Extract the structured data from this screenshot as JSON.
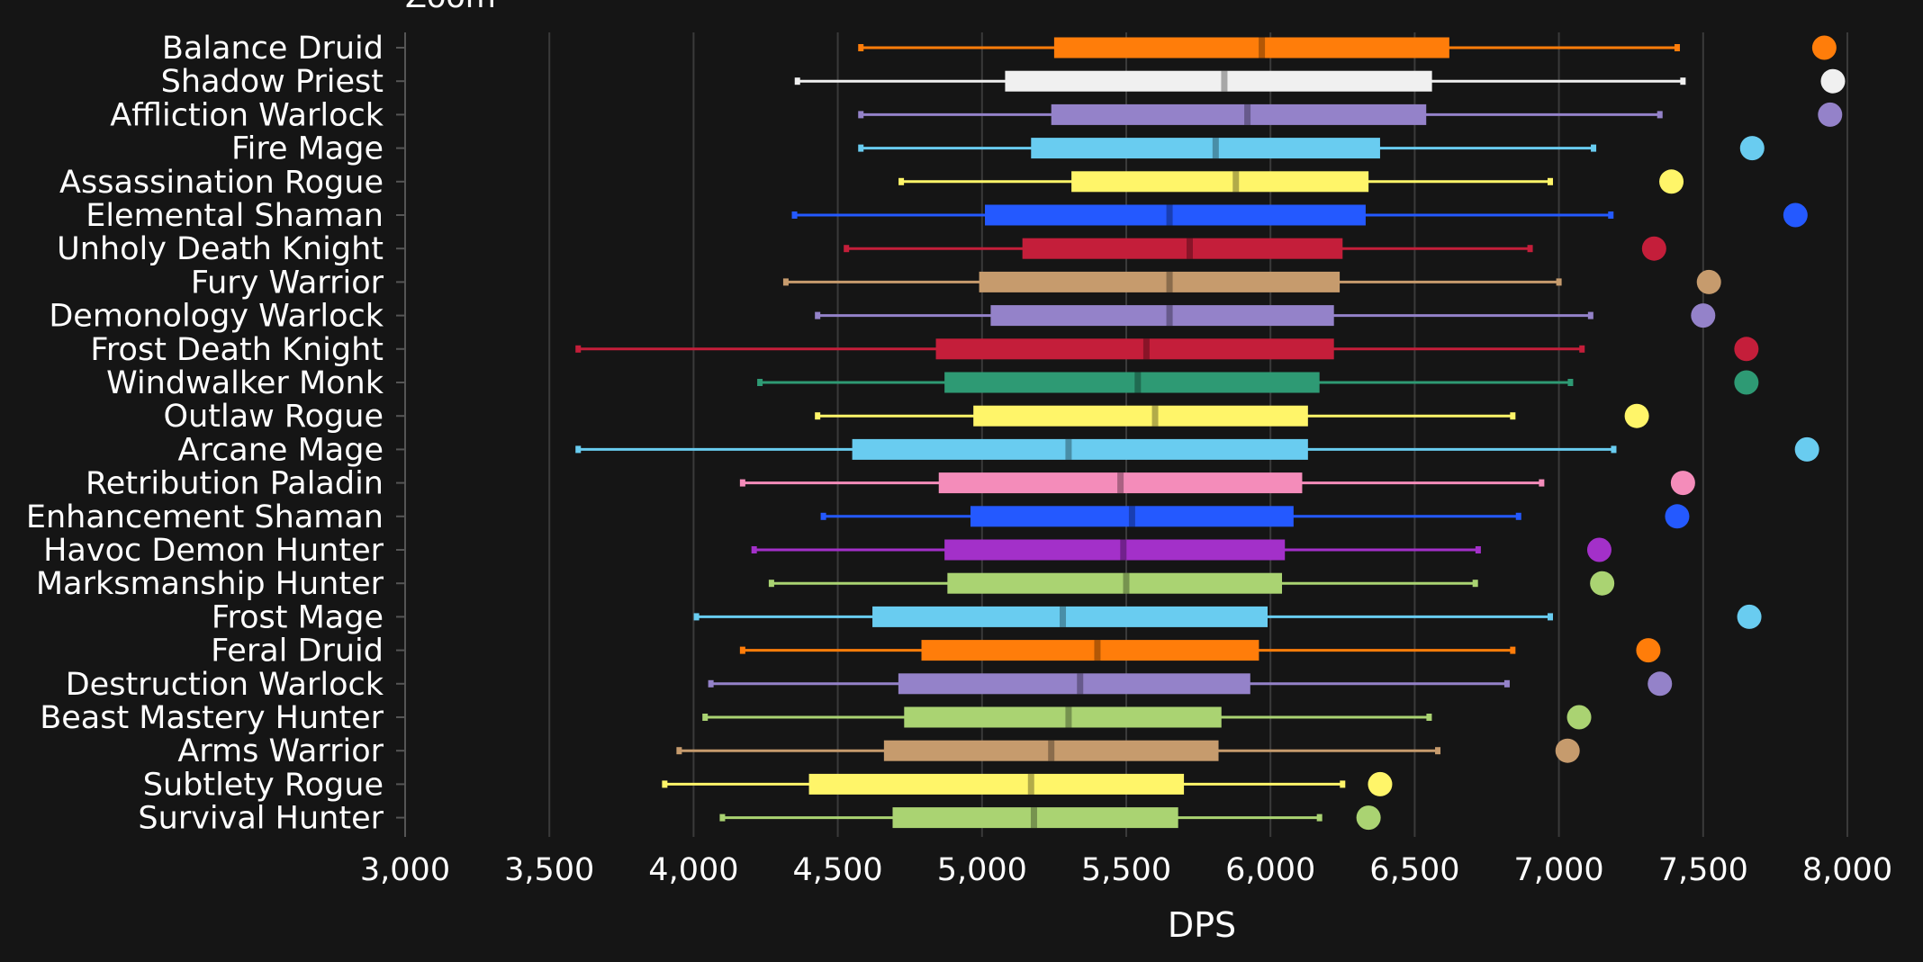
{
  "chart_data": {
    "type": "boxplot",
    "title": "Zoom",
    "xlabel": "DPS",
    "ylabel": "",
    "xlim": [
      3000,
      8000
    ],
    "xticks": [
      "3,000",
      "3,500",
      "4,000",
      "4,500",
      "5,000",
      "5,500",
      "6,000",
      "6,500",
      "7,000",
      "7,500",
      "8,000"
    ],
    "xtick_values": [
      3000,
      3500,
      4000,
      4500,
      5000,
      5500,
      6000,
      6500,
      7000,
      7500,
      8000
    ],
    "grid": true,
    "background": "#151515",
    "series": [
      {
        "name": "Balance Druid",
        "color": "#ff7d0a",
        "min": 4580,
        "q1": 5250,
        "median": 5970,
        "q3": 6620,
        "max": 7410,
        "top": 7920
      },
      {
        "name": "Shadow Priest",
        "color": "#f0f0f0",
        "min": 4360,
        "q1": 5080,
        "median": 5840,
        "q3": 6560,
        "max": 7430,
        "top": 7950
      },
      {
        "name": "Affliction Warlock",
        "color": "#9482c9",
        "min": 4580,
        "q1": 5240,
        "median": 5920,
        "q3": 6540,
        "max": 7350,
        "top": 7940
      },
      {
        "name": "Fire Mage",
        "color": "#69ccf0",
        "min": 4580,
        "q1": 5170,
        "median": 5810,
        "q3": 6380,
        "max": 7120,
        "top": 7670
      },
      {
        "name": "Assassination Rogue",
        "color": "#fff569",
        "min": 4720,
        "q1": 5310,
        "median": 5880,
        "q3": 6340,
        "max": 6970,
        "top": 7390
      },
      {
        "name": "Elemental Shaman",
        "color": "#2459ff",
        "min": 4350,
        "q1": 5010,
        "median": 5650,
        "q3": 6330,
        "max": 7180,
        "top": 7820
      },
      {
        "name": "Unholy Death Knight",
        "color": "#c41e3a",
        "min": 4530,
        "q1": 5140,
        "median": 5720,
        "q3": 6250,
        "max": 6900,
        "top": 7330
      },
      {
        "name": "Fury Warrior",
        "color": "#c69b6d",
        "min": 4320,
        "q1": 4990,
        "median": 5650,
        "q3": 6240,
        "max": 7000,
        "top": 7520
      },
      {
        "name": "Demonology Warlock",
        "color": "#9482c9",
        "min": 4430,
        "q1": 5030,
        "median": 5650,
        "q3": 6220,
        "max": 7110,
        "top": 7500
      },
      {
        "name": "Frost Death Knight",
        "color": "#c41e3a",
        "min": 3600,
        "q1": 4840,
        "median": 5570,
        "q3": 6220,
        "max": 7080,
        "top": 7650
      },
      {
        "name": "Windwalker Monk",
        "color": "#2e9a74",
        "min": 4230,
        "q1": 4870,
        "median": 5540,
        "q3": 6170,
        "max": 7040,
        "top": 7650
      },
      {
        "name": "Outlaw Rogue",
        "color": "#fff569",
        "min": 4430,
        "q1": 4970,
        "median": 5600,
        "q3": 6130,
        "max": 6840,
        "top": 7270
      },
      {
        "name": "Arcane Mage",
        "color": "#69ccf0",
        "min": 3600,
        "q1": 4550,
        "median": 5300,
        "q3": 6130,
        "max": 7190,
        "top": 7860
      },
      {
        "name": "Retribution Paladin",
        "color": "#f48cba",
        "min": 4170,
        "q1": 4850,
        "median": 5480,
        "q3": 6110,
        "max": 6940,
        "top": 7430
      },
      {
        "name": "Enhancement Shaman",
        "color": "#2459ff",
        "min": 4450,
        "q1": 4960,
        "median": 5520,
        "q3": 6080,
        "max": 6860,
        "top": 7410
      },
      {
        "name": "Havoc Demon Hunter",
        "color": "#a330c9",
        "min": 4210,
        "q1": 4870,
        "median": 5490,
        "q3": 6050,
        "max": 6720,
        "top": 7140
      },
      {
        "name": "Marksmanship Hunter",
        "color": "#aad372",
        "min": 4270,
        "q1": 4880,
        "median": 5500,
        "q3": 6040,
        "max": 6710,
        "top": 7150
      },
      {
        "name": "Frost Mage",
        "color": "#69ccf0",
        "min": 4010,
        "q1": 4620,
        "median": 5280,
        "q3": 5990,
        "max": 6970,
        "top": 7660
      },
      {
        "name": "Feral Druid",
        "color": "#ff7d0a",
        "min": 4170,
        "q1": 4790,
        "median": 5400,
        "q3": 5960,
        "max": 6840,
        "top": 7310
      },
      {
        "name": "Destruction Warlock",
        "color": "#9482c9",
        "min": 4060,
        "q1": 4710,
        "median": 5340,
        "q3": 5930,
        "max": 6820,
        "top": 7350
      },
      {
        "name": "Beast Mastery Hunter",
        "color": "#aad372",
        "min": 4040,
        "q1": 4730,
        "median": 5300,
        "q3": 5830,
        "max": 6550,
        "top": 7070
      },
      {
        "name": "Arms Warrior",
        "color": "#c69b6d",
        "min": 3950,
        "q1": 4660,
        "median": 5240,
        "q3": 5820,
        "max": 6580,
        "top": 7030
      },
      {
        "name": "Subtlety Rogue",
        "color": "#fff569",
        "min": 3900,
        "q1": 4400,
        "median": 5170,
        "q3": 5700,
        "max": 6250,
        "top": 6380
      },
      {
        "name": "Survival Hunter",
        "color": "#aad372",
        "min": 4100,
        "q1": 4690,
        "median": 5180,
        "q3": 5680,
        "max": 6170,
        "top": 6340
      }
    ]
  }
}
